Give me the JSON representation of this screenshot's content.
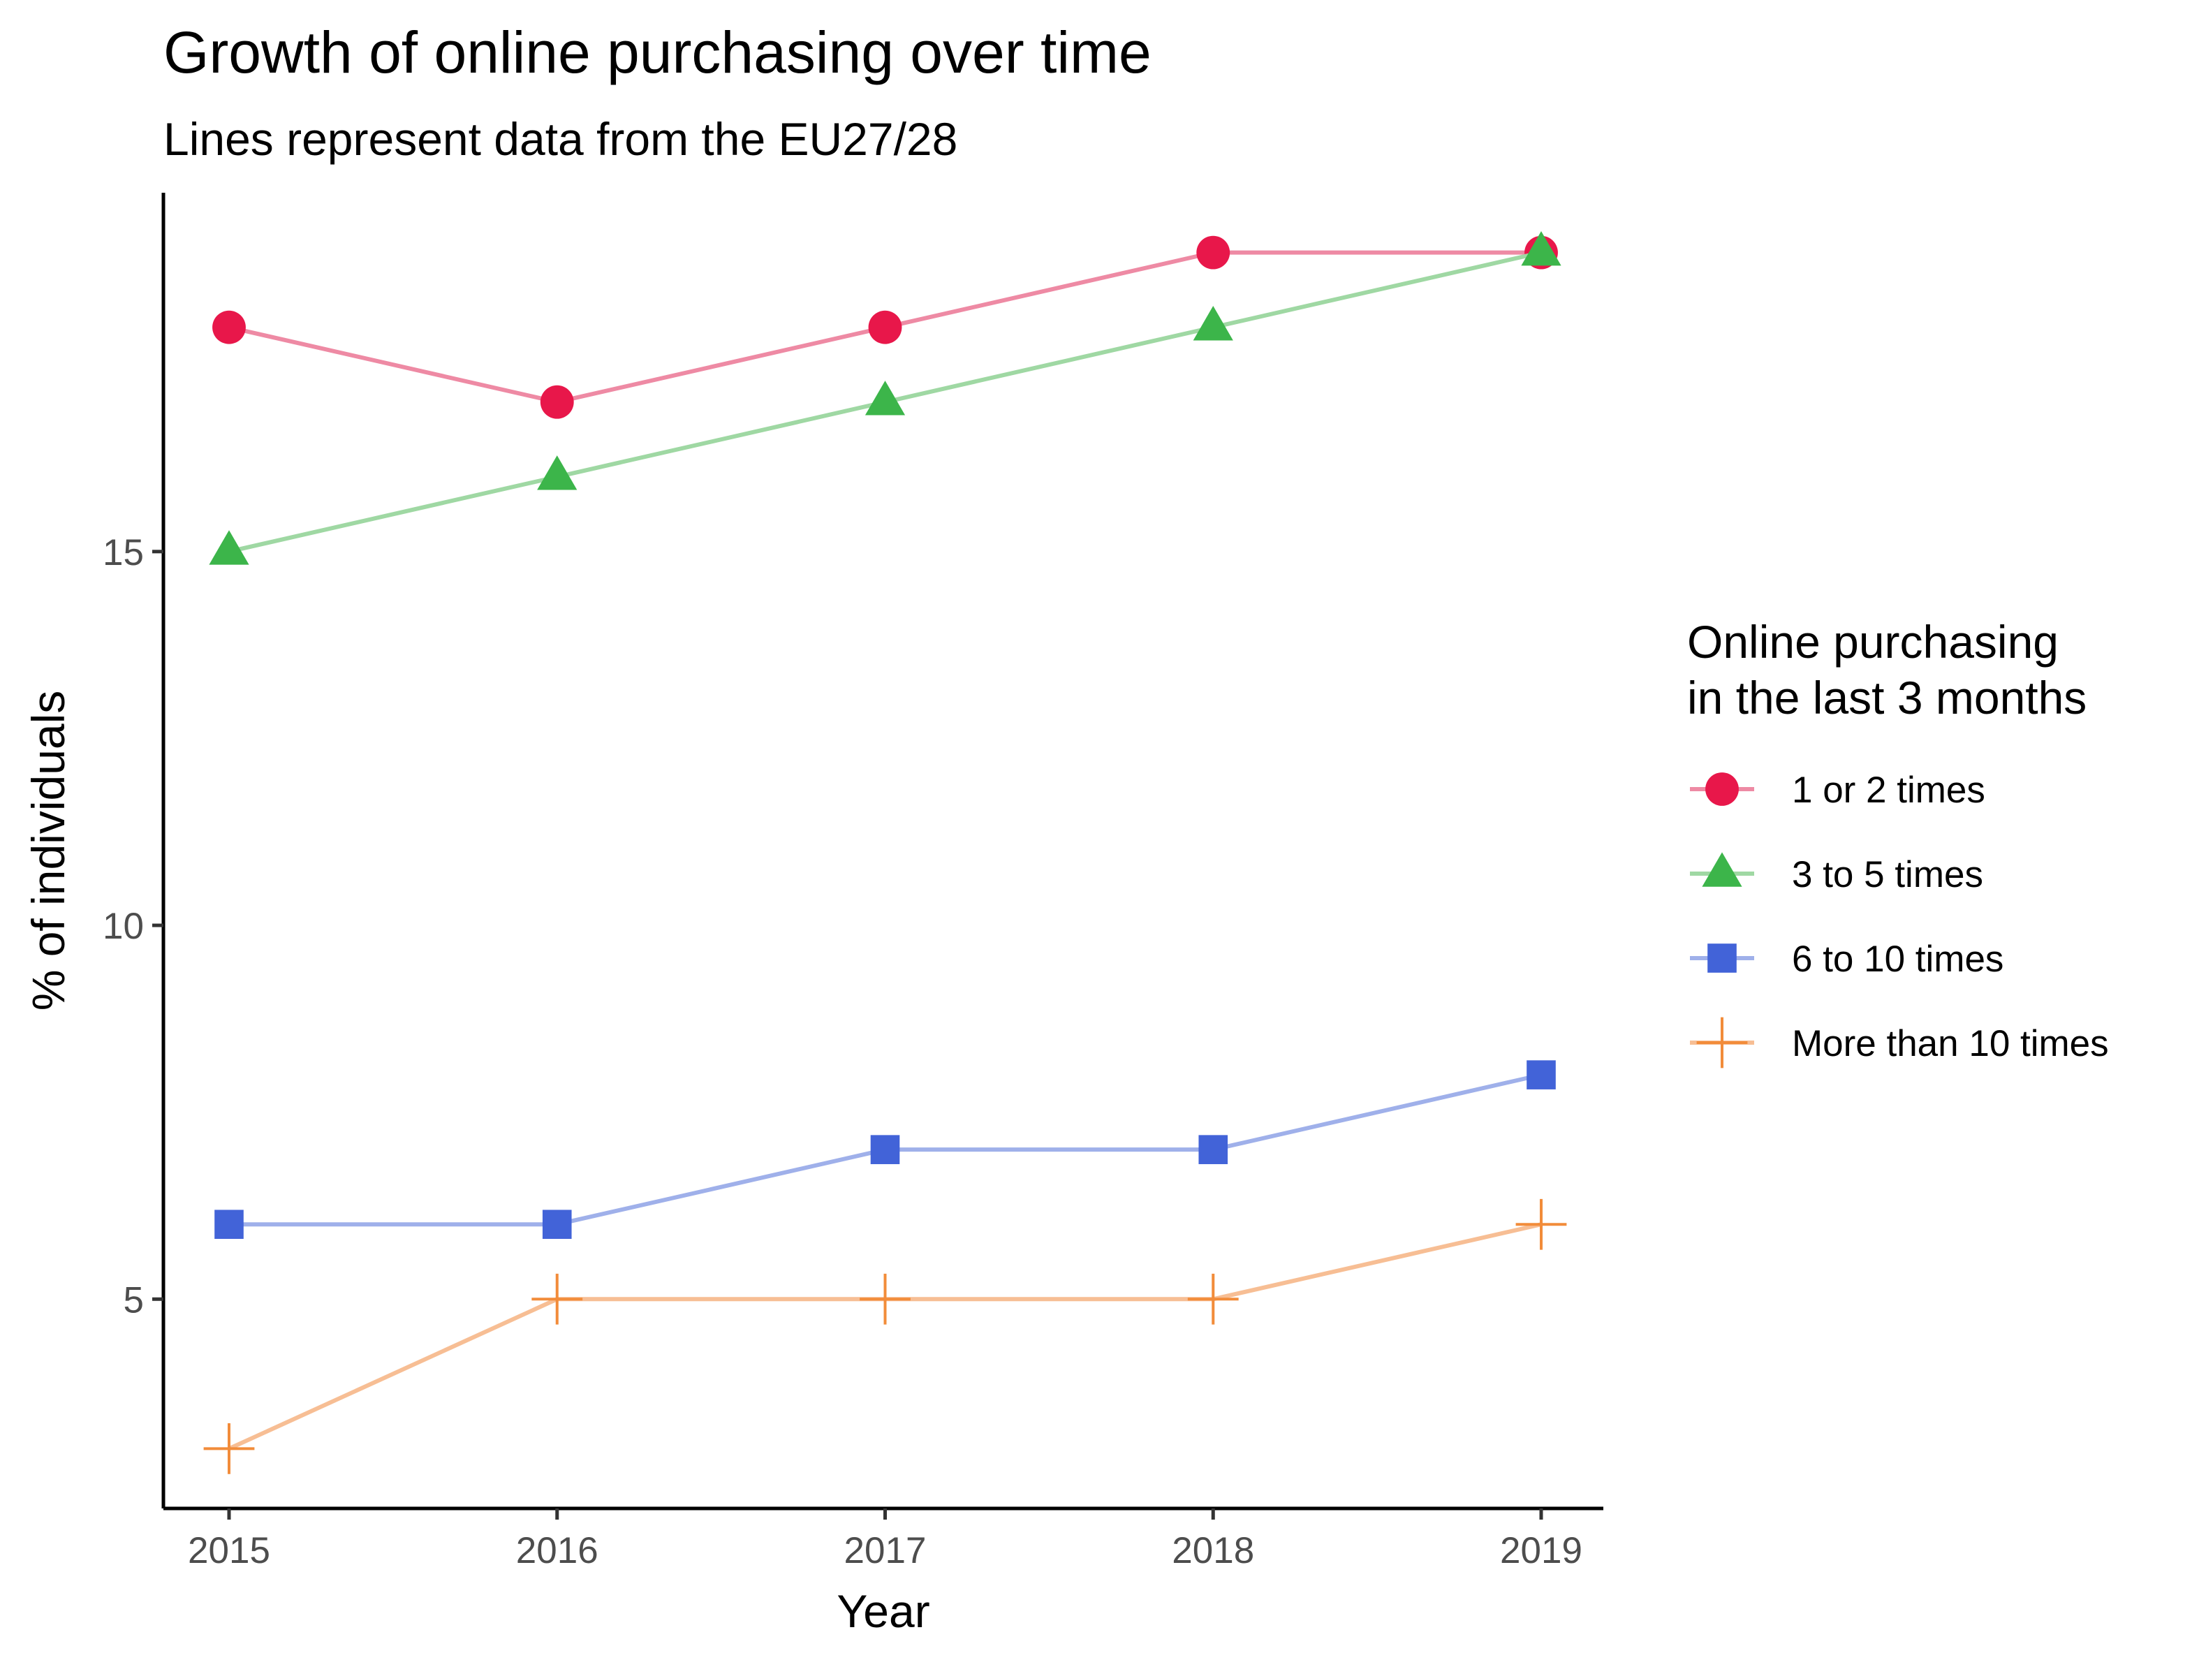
{
  "chart_data": {
    "type": "line",
    "title": "Growth of online purchasing over time",
    "subtitle": "Lines represent data from the EU27/28",
    "xlabel": "Year",
    "ylabel": "% of individuals",
    "x": [
      2015,
      2016,
      2017,
      2018,
      2019
    ],
    "x_ticks": [
      "2015",
      "2016",
      "2017",
      "2018",
      "2019"
    ],
    "y_ticks": [
      5,
      10,
      15
    ],
    "ylim": [
      2.2,
      19.8
    ],
    "grid": false,
    "legend": {
      "title_lines": [
        "Online purchasing",
        "in the last 3 months"
      ],
      "position": "right"
    },
    "series": [
      {
        "name": "1 or 2 times",
        "values": [
          18,
          17,
          18,
          19,
          19
        ],
        "marker": "circle",
        "color": "#E8174A",
        "line_color": "#EE8AA4"
      },
      {
        "name": "3 to 5 times",
        "values": [
          15,
          16,
          17,
          18,
          19
        ],
        "marker": "triangle",
        "color": "#3CB54A",
        "line_color": "#9FD8A3"
      },
      {
        "name": "6 to 10 times",
        "values": [
          6,
          6,
          7,
          7,
          8
        ],
        "marker": "square",
        "color": "#4263D8",
        "line_color": "#9FB0EA"
      },
      {
        "name": "More than 10 times",
        "values": [
          3,
          5,
          5,
          5,
          6
        ],
        "marker": "plus",
        "color": "#F28C3A",
        "line_color": "#F7BE94"
      }
    ]
  }
}
